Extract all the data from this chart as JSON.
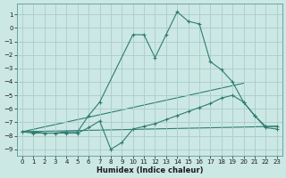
{
  "background_color": "#cce8e4",
  "grid_color": "#aaccca",
  "line_color": "#2e7d70",
  "xlabel": "Humidex (Indice chaleur)",
  "xlim": [
    -0.5,
    23.5
  ],
  "ylim": [
    -9.5,
    1.8
  ],
  "xticks": [
    0,
    1,
    2,
    3,
    4,
    5,
    6,
    7,
    8,
    9,
    10,
    11,
    12,
    13,
    14,
    15,
    16,
    17,
    18,
    19,
    20,
    21,
    22,
    23
  ],
  "yticks": [
    1,
    0,
    -1,
    -2,
    -3,
    -4,
    -5,
    -6,
    -7,
    -8,
    -9
  ],
  "series": [
    {
      "x": [
        0,
        1,
        2,
        3,
        4,
        5,
        6,
        7,
        10,
        11,
        12,
        13,
        14,
        15,
        16,
        17,
        18,
        19,
        20,
        21,
        22,
        23
      ],
      "y": [
        -7.7,
        -7.7,
        -7.8,
        -7.8,
        -7.7,
        -7.7,
        -6.5,
        -5.5,
        -0.5,
        -0.5,
        -2.2,
        -0.5,
        1.2,
        0.5,
        0.3,
        -2.5,
        -3.1,
        -4.0,
        -5.5,
        -6.5,
        -7.4,
        -7.5
      ],
      "marker": "+"
    },
    {
      "x": [
        0,
        1,
        2,
        3,
        4,
        5,
        6,
        7,
        8,
        9,
        10,
        11,
        12,
        13,
        14,
        15,
        16,
        17,
        18,
        19,
        20,
        21,
        22,
        23
      ],
      "y": [
        -7.7,
        -7.8,
        -7.8,
        -7.8,
        -7.8,
        -7.8,
        -7.4,
        -6.9,
        -9.0,
        -8.5,
        -7.5,
        -7.3,
        -7.1,
        -6.8,
        -6.5,
        -6.2,
        -5.9,
        -5.6,
        -5.2,
        -5.0,
        -5.5,
        -6.5,
        -7.3,
        -7.3
      ],
      "marker": "+"
    },
    {
      "x": [
        0,
        20
      ],
      "y": [
        -7.7,
        -4.1
      ],
      "marker": null
    },
    {
      "x": [
        0,
        23
      ],
      "y": [
        -7.7,
        -7.3
      ],
      "marker": null
    }
  ]
}
